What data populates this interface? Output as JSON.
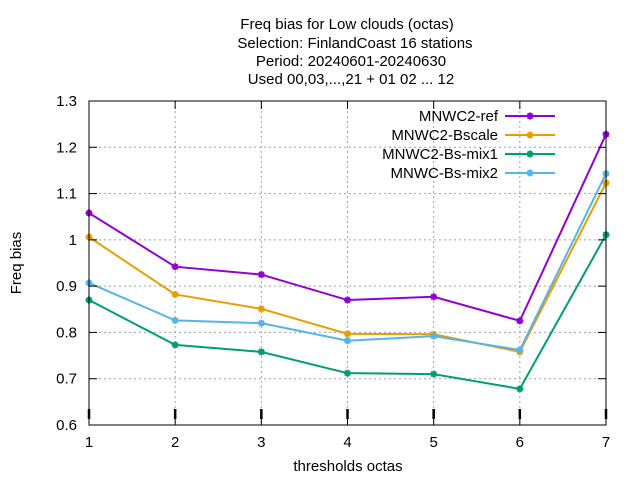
{
  "chart_data": {
    "type": "line",
    "title_lines": [
      "Freq bias  for Low clouds (octas)",
      "Selection: FinlandCoast      16 stations",
      "Period: 20240601-20240630",
      "Used 00,03,...,21 + 01 02 ... 12"
    ],
    "xlabel": "thresholds octas",
    "ylabel": "Freq bias",
    "x": [
      1,
      2,
      3,
      4,
      5,
      6,
      7
    ],
    "xlim": [
      1,
      7
    ],
    "ylim": [
      0.6,
      1.3
    ],
    "x_ticks": [
      "1",
      "2",
      "3",
      "4",
      "5",
      "6",
      "7"
    ],
    "y_ticks": [
      "0.6",
      "0.7",
      "0.8",
      "0.9",
      "1",
      "1.1",
      "1.2",
      "1.3"
    ],
    "grid": true,
    "legend_position": "top-right",
    "series": [
      {
        "name": "MNWC2-ref",
        "color": "#9400d3",
        "values": [
          1.058,
          0.942,
          0.925,
          0.87,
          0.877,
          0.825,
          1.228
        ]
      },
      {
        "name": "MNWC2-Bscale",
        "color": "#e69f00",
        "values": [
          1.006,
          0.882,
          0.851,
          0.797,
          0.796,
          0.758,
          1.123
        ]
      },
      {
        "name": "MNWC2-Bs-mix1",
        "color": "#009e73",
        "values": [
          0.87,
          0.773,
          0.758,
          0.712,
          0.71,
          0.678,
          1.011
        ]
      },
      {
        "name": "MNWC-Bs-mix2",
        "color": "#56b4e9",
        "values": [
          0.907,
          0.826,
          0.82,
          0.782,
          0.792,
          0.762,
          1.143
        ]
      }
    ]
  }
}
